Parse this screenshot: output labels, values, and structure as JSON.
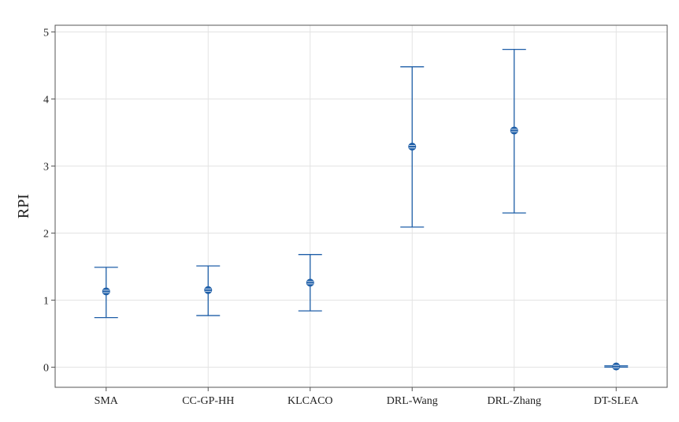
{
  "chart_data": {
    "type": "errorbar",
    "title": "",
    "xlabel": "",
    "ylabel": "RPI",
    "ylim": [
      -0.3,
      5.1
    ],
    "yticks": [
      0,
      1,
      2,
      3,
      4,
      5
    ],
    "grid": true,
    "categories": [
      "SMA",
      "CC-GP-HH",
      "KLCACO",
      "DRL-Wang",
      "DRL-Zhang",
      "DT-SLEA"
    ],
    "series": [
      {
        "mean": [
          1.13,
          1.15,
          1.26,
          3.29,
          3.53,
          0.01
        ],
        "lower": [
          0.74,
          0.77,
          0.84,
          2.09,
          2.3,
          0.0
        ],
        "upper": [
          1.49,
          1.51,
          1.68,
          4.48,
          4.74,
          0.02
        ]
      }
    ],
    "colors": {
      "marker": "#1f5fa8",
      "grid": "#e3e3e3",
      "axis": "#555555"
    }
  }
}
